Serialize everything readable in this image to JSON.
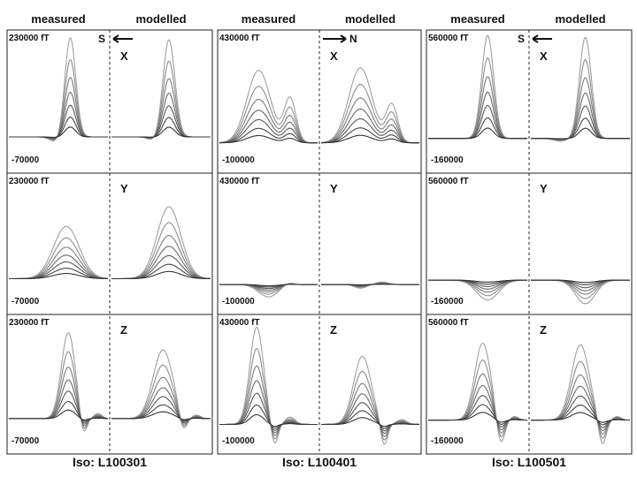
{
  "headers": {
    "measured": "measured",
    "modelled": "modelled"
  },
  "unit": "fT",
  "columns": [
    {
      "iso": "Iso: L100301",
      "direction": "S",
      "arrow": "left",
      "ymax_label": "230000",
      "ymin_label": "-70000",
      "ylim": [
        -70000,
        230000
      ]
    },
    {
      "iso": "Iso: L100401",
      "direction": "N",
      "arrow": "right",
      "ymax_label": "430000",
      "ymin_label": "-100000",
      "ylim": [
        -100000,
        430000
      ]
    },
    {
      "iso": "Iso: L100501",
      "direction": "S",
      "arrow": "left",
      "ymax_label": "560000",
      "ymin_label": "-160000",
      "ylim": [
        -160000,
        560000
      ]
    }
  ],
  "rows": [
    "X",
    "Y",
    "Z"
  ],
  "chart_data": {
    "type": "line",
    "x_unit": "normalized position across panel half (0-1)",
    "curves_per_panel": 7,
    "curve_scales": [
      1.0,
      0.78,
      0.6,
      0.45,
      0.32,
      0.2,
      0.1
    ],
    "panels": [
      {
        "col": 0,
        "row": "X",
        "side": "measured",
        "peaks": [
          {
            "pos": 0.62,
            "height": 225000,
            "width": 0.055
          },
          {
            "pos": 0.48,
            "height": -12000,
            "width": 0.06
          }
        ]
      },
      {
        "col": 0,
        "row": "X",
        "side": "modelled",
        "peaks": [
          {
            "pos": 0.58,
            "height": 220000,
            "width": 0.06
          },
          {
            "pos": 0.42,
            "height": -8000,
            "width": 0.05
          }
        ]
      },
      {
        "col": 0,
        "row": "Y",
        "side": "measured",
        "peaks": [
          {
            "pos": 0.58,
            "height": 120000,
            "width": 0.13
          }
        ]
      },
      {
        "col": 0,
        "row": "Y",
        "side": "modelled",
        "peaks": [
          {
            "pos": 0.58,
            "height": 165000,
            "width": 0.12
          }
        ]
      },
      {
        "col": 0,
        "row": "Z",
        "side": "measured",
        "peaks": [
          {
            "pos": 0.6,
            "height": 200000,
            "width": 0.07
          },
          {
            "pos": 0.75,
            "height": -45000,
            "width": 0.035
          },
          {
            "pos": 0.9,
            "height": 12000,
            "width": 0.04
          }
        ]
      },
      {
        "col": 0,
        "row": "Z",
        "side": "modelled",
        "peaks": [
          {
            "pos": 0.52,
            "height": 160000,
            "width": 0.1
          },
          {
            "pos": 0.72,
            "height": -40000,
            "width": 0.04
          },
          {
            "pos": 0.86,
            "height": 8000,
            "width": 0.04
          }
        ]
      },
      {
        "col": 1,
        "row": "X",
        "side": "measured",
        "peaks": [
          {
            "pos": 0.4,
            "height": 290000,
            "width": 0.12
          },
          {
            "pos": 0.72,
            "height": 175000,
            "width": 0.06
          }
        ]
      },
      {
        "col": 1,
        "row": "X",
        "side": "modelled",
        "peaks": [
          {
            "pos": 0.4,
            "height": 300000,
            "width": 0.12
          },
          {
            "pos": 0.72,
            "height": 150000,
            "width": 0.06
          }
        ]
      },
      {
        "col": 1,
        "row": "Y",
        "side": "measured",
        "peaks": [
          {
            "pos": 0.5,
            "height": -50000,
            "width": 0.1
          },
          {
            "pos": 0.7,
            "height": 10000,
            "width": 0.05
          }
        ]
      },
      {
        "col": 1,
        "row": "Y",
        "side": "modelled",
        "peaks": [
          {
            "pos": 0.4,
            "height": -15000,
            "width": 0.06
          },
          {
            "pos": 0.62,
            "height": 10000,
            "width": 0.06
          }
        ]
      },
      {
        "col": 1,
        "row": "Z",
        "side": "measured",
        "peaks": [
          {
            "pos": 0.38,
            "height": 400000,
            "width": 0.07
          },
          {
            "pos": 0.56,
            "height": -90000,
            "width": 0.035
          },
          {
            "pos": 0.72,
            "height": 30000,
            "width": 0.05
          }
        ]
      },
      {
        "col": 1,
        "row": "Z",
        "side": "modelled",
        "peaks": [
          {
            "pos": 0.42,
            "height": 280000,
            "width": 0.09
          },
          {
            "pos": 0.64,
            "height": -95000,
            "width": 0.035
          },
          {
            "pos": 0.82,
            "height": 20000,
            "width": 0.05
          }
        ]
      },
      {
        "col": 2,
        "row": "X",
        "side": "measured",
        "peaks": [
          {
            "pos": 0.6,
            "height": 560000,
            "width": 0.06
          }
        ]
      },
      {
        "col": 2,
        "row": "X",
        "side": "modelled",
        "peaks": [
          {
            "pos": 0.55,
            "height": 550000,
            "width": 0.06
          },
          {
            "pos": 0.3,
            "height": -15000,
            "width": 0.07
          }
        ]
      },
      {
        "col": 2,
        "row": "Y",
        "side": "measured",
        "peaks": [
          {
            "pos": 0.6,
            "height": -110000,
            "width": 0.11
          }
        ]
      },
      {
        "col": 2,
        "row": "Y",
        "side": "modelled",
        "peaks": [
          {
            "pos": 0.55,
            "height": -130000,
            "width": 0.1
          }
        ]
      },
      {
        "col": 2,
        "row": "Z",
        "side": "measured",
        "peaks": [
          {
            "pos": 0.55,
            "height": 430000,
            "width": 0.08
          },
          {
            "pos": 0.73,
            "height": -150000,
            "width": 0.04
          },
          {
            "pos": 0.87,
            "height": 20000,
            "width": 0.04
          }
        ]
      },
      {
        "col": 2,
        "row": "Z",
        "side": "modelled",
        "peaks": [
          {
            "pos": 0.5,
            "height": 420000,
            "width": 0.09
          },
          {
            "pos": 0.72,
            "height": -150000,
            "width": 0.04
          },
          {
            "pos": 0.87,
            "height": 20000,
            "width": 0.04
          }
        ]
      }
    ]
  }
}
